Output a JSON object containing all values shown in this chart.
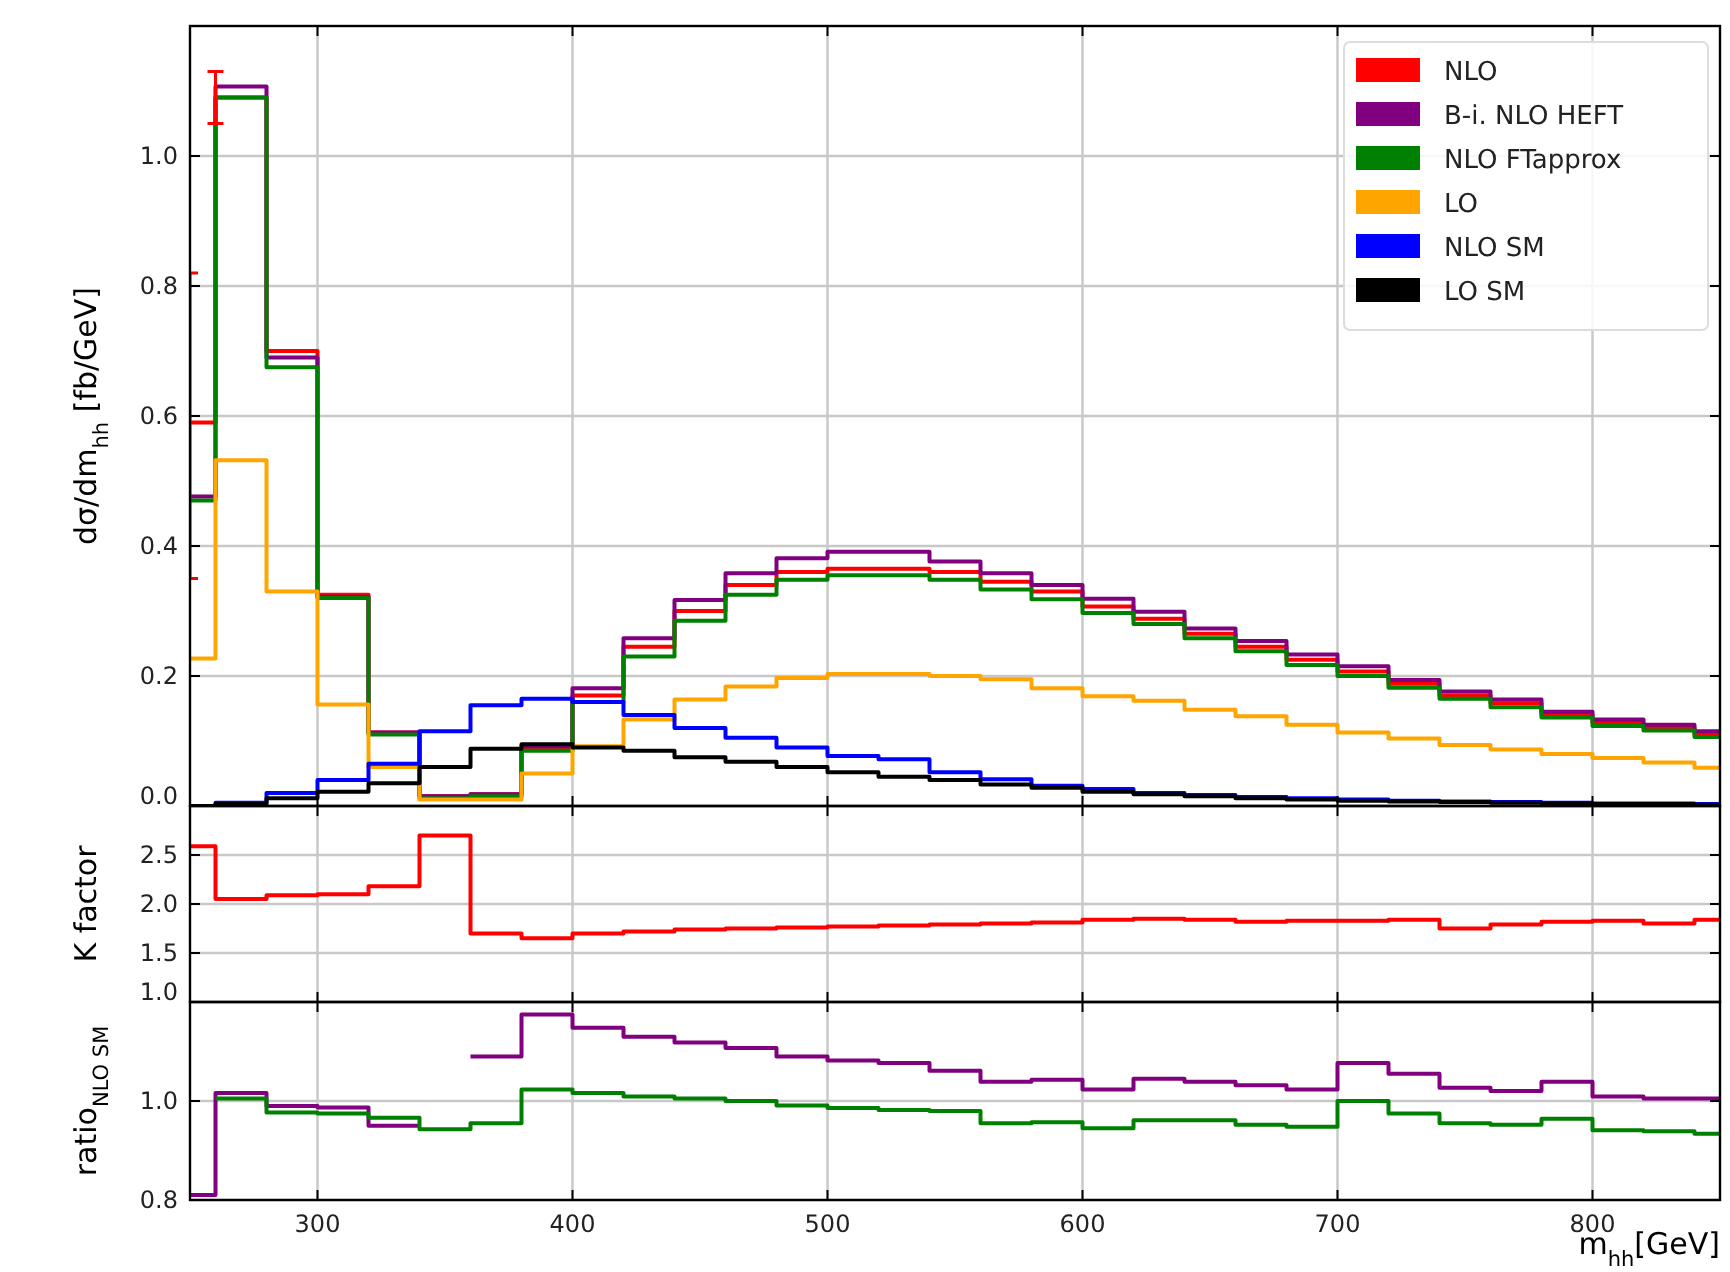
{
  "chart_data": [
    {
      "type": "step",
      "ylabel": "dσ/dm$_{hh}$ [fb/GeV]",
      "x": [
        250,
        260,
        280,
        300,
        320,
        340,
        360,
        380,
        400,
        420,
        440,
        460,
        480,
        500,
        520,
        540,
        560,
        580,
        600,
        620,
        640,
        660,
        680,
        700,
        720,
        740,
        760,
        780,
        800,
        820,
        840,
        850
      ],
      "xlim": [
        250,
        850
      ],
      "xticks": [
        300,
        400,
        500,
        600,
        700,
        800
      ],
      "ylim": [
        0,
        1.2
      ],
      "yticks": [
        {
          "value": 0,
          "label": "0.0"
        },
        0.2,
        0.4,
        0.6,
        0.8,
        {
          "value": 1,
          "label": "1.0"
        }
      ],
      "grid": true,
      "legend": "top right",
      "tick_labels": "y",
      "series": [
        {
          "name": "NLO",
          "color": "#ff0000",
          "values": [
            0.59,
            1.09,
            0.7,
            0.325,
            0.113,
            0.015,
            0.018,
            0.09,
            0.17,
            0.245,
            0.3,
            0.34,
            0.36,
            0.365,
            0.365,
            0.36,
            0.345,
            0.33,
            0.307,
            0.288,
            0.265,
            0.245,
            0.225,
            0.207,
            0.188,
            0.17,
            0.158,
            0.14,
            0.128,
            0.12,
            0.11,
            0.11
          ],
          "errors": [
            [
              0.35,
              0.82
            ],
            [
              1.05,
              1.13
            ],
            null,
            null,
            null,
            null,
            null,
            null,
            null,
            null,
            null,
            null,
            null,
            null,
            null,
            null,
            null,
            null,
            null,
            null,
            null,
            null,
            null,
            null,
            null,
            null,
            null,
            null,
            null,
            null,
            null,
            null
          ]
        },
        {
          "name": "B-i. NLO HEFT",
          "color": "#800080",
          "values": [
            0.476,
            1.107,
            0.69,
            0.322,
            0.113,
            0.015,
            0.018,
            0.092,
            0.181,
            0.258,
            0.317,
            0.358,
            0.381,
            0.391,
            0.391,
            0.376,
            0.358,
            0.34,
            0.319,
            0.299,
            0.273,
            0.254,
            0.233,
            0.215,
            0.194,
            0.176,
            0.164,
            0.145,
            0.133,
            0.125,
            0.115,
            0.115
          ]
        },
        {
          "name": "NLO FTapprox",
          "color": "#008000",
          "values": [
            0.47,
            1.09,
            0.675,
            0.32,
            0.11,
            0.012,
            0.015,
            0.085,
            0.16,
            0.23,
            0.285,
            0.325,
            0.348,
            0.355,
            0.355,
            0.348,
            0.333,
            0.318,
            0.297,
            0.28,
            0.258,
            0.238,
            0.217,
            0.2,
            0.182,
            0.165,
            0.152,
            0.136,
            0.123,
            0.116,
            0.106,
            0.106
          ]
        },
        {
          "name": "LO",
          "color": "#ffa500",
          "values": [
            0.227,
            0.532,
            0.33,
            0.156,
            0.06,
            0.01,
            0.01,
            0.05,
            0.092,
            0.133,
            0.164,
            0.184,
            0.197,
            0.203,
            0.203,
            0.2,
            0.195,
            0.181,
            0.169,
            0.162,
            0.148,
            0.138,
            0.125,
            0.113,
            0.104,
            0.094,
            0.087,
            0.08,
            0.074,
            0.067,
            0.059,
            0.059
          ]
        },
        {
          "name": "NLO SM",
          "color": "#0000ff",
          "values": [
            0.0,
            0.005,
            0.02,
            0.04,
            0.065,
            0.115,
            0.155,
            0.165,
            0.16,
            0.14,
            0.12,
            0.105,
            0.09,
            0.077,
            0.072,
            0.052,
            0.041,
            0.031,
            0.026,
            0.02,
            0.017,
            0.014,
            0.012,
            0.01,
            0.008,
            0.007,
            0.006,
            0.005,
            0.004,
            0.004,
            0.003,
            0.003
          ]
        },
        {
          "name": "LO SM",
          "color": "#000000",
          "values": [
            0.0,
            0.003,
            0.012,
            0.022,
            0.035,
            0.06,
            0.088,
            0.095,
            0.09,
            0.085,
            0.075,
            0.068,
            0.06,
            0.052,
            0.045,
            0.04,
            0.033,
            0.028,
            0.022,
            0.018,
            0.015,
            0.012,
            0.01,
            0.008,
            0.007,
            0.006,
            0.005,
            0.004,
            0.003,
            0.003,
            0.002,
            0.002
          ]
        }
      ]
    },
    {
      "type": "step",
      "ylabel": "K factor",
      "x": [
        250,
        260,
        280,
        300,
        320,
        340,
        360,
        380,
        400,
        420,
        440,
        460,
        480,
        500,
        520,
        540,
        560,
        580,
        600,
        620,
        640,
        660,
        680,
        700,
        720,
        740,
        760,
        780,
        800,
        820,
        840,
        850
      ],
      "xlim": [
        250,
        850
      ],
      "xticks": [
        300,
        400,
        500,
        600,
        700,
        800
      ],
      "ylim": [
        1,
        3
      ],
      "yticks": [
        {
          "value": 1,
          "label": "1.0"
        },
        1.5,
        {
          "value": 2,
          "label": "2.0"
        },
        2.5
      ],
      "grid": true,
      "tick_labels": "y",
      "series": [
        {
          "color": "#ff0000",
          "values": [
            2.59,
            2.05,
            2.09,
            2.1,
            2.18,
            2.7,
            1.7,
            1.65,
            1.7,
            1.72,
            1.74,
            1.75,
            1.76,
            1.77,
            1.78,
            1.79,
            1.8,
            1.81,
            1.84,
            1.85,
            1.84,
            1.82,
            1.83,
            1.83,
            1.84,
            1.75,
            1.79,
            1.82,
            1.83,
            1.8,
            1.84,
            1.84
          ]
        }
      ]
    },
    {
      "type": "step",
      "ylabel": "ratio$_{NLO SM}$",
      "xlabel": "m$_{hh}$[GeV]",
      "x": [
        250,
        260,
        280,
        300,
        320,
        340,
        360,
        380,
        400,
        420,
        440,
        460,
        480,
        500,
        520,
        540,
        560,
        580,
        600,
        620,
        640,
        660,
        680,
        700,
        720,
        740,
        760,
        780,
        800,
        820,
        840,
        850
      ],
      "xlim": [
        250,
        850
      ],
      "xticks": [
        300,
        400,
        500,
        600,
        700,
        800
      ],
      "ylim": [
        0.8,
        1.2
      ],
      "yticks": [
        0.8,
        {
          "value": 1,
          "label": "1.0"
        }
      ],
      "grid": true,
      "series": [
        {
          "color": "#800080",
          "values": [
            0.81,
            1.016,
            0.99,
            0.987,
            0.95,
            null,
            1.09,
            1.175,
            1.148,
            1.13,
            1.118,
            1.107,
            1.09,
            1.082,
            1.077,
            1.061,
            1.039,
            1.043,
            1.023,
            1.045,
            1.039,
            1.032,
            1.023,
            1.077,
            1.055,
            1.027,
            1.02,
            1.039,
            1.009,
            1.005,
            1.005,
            1.005
          ]
        },
        {
          "color": "#008000",
          "values": [
            null,
            1.005,
            0.977,
            0.975,
            0.966,
            0.943,
            0.955,
            1.023,
            1.016,
            1.009,
            1.005,
            1.0,
            0.991,
            0.986,
            0.982,
            0.98,
            0.955,
            0.957,
            0.945,
            0.961,
            0.961,
            0.952,
            0.948,
            1.0,
            0.975,
            0.955,
            0.952,
            0.964,
            0.941,
            0.939,
            0.934,
            0.934
          ]
        }
      ]
    }
  ]
}
